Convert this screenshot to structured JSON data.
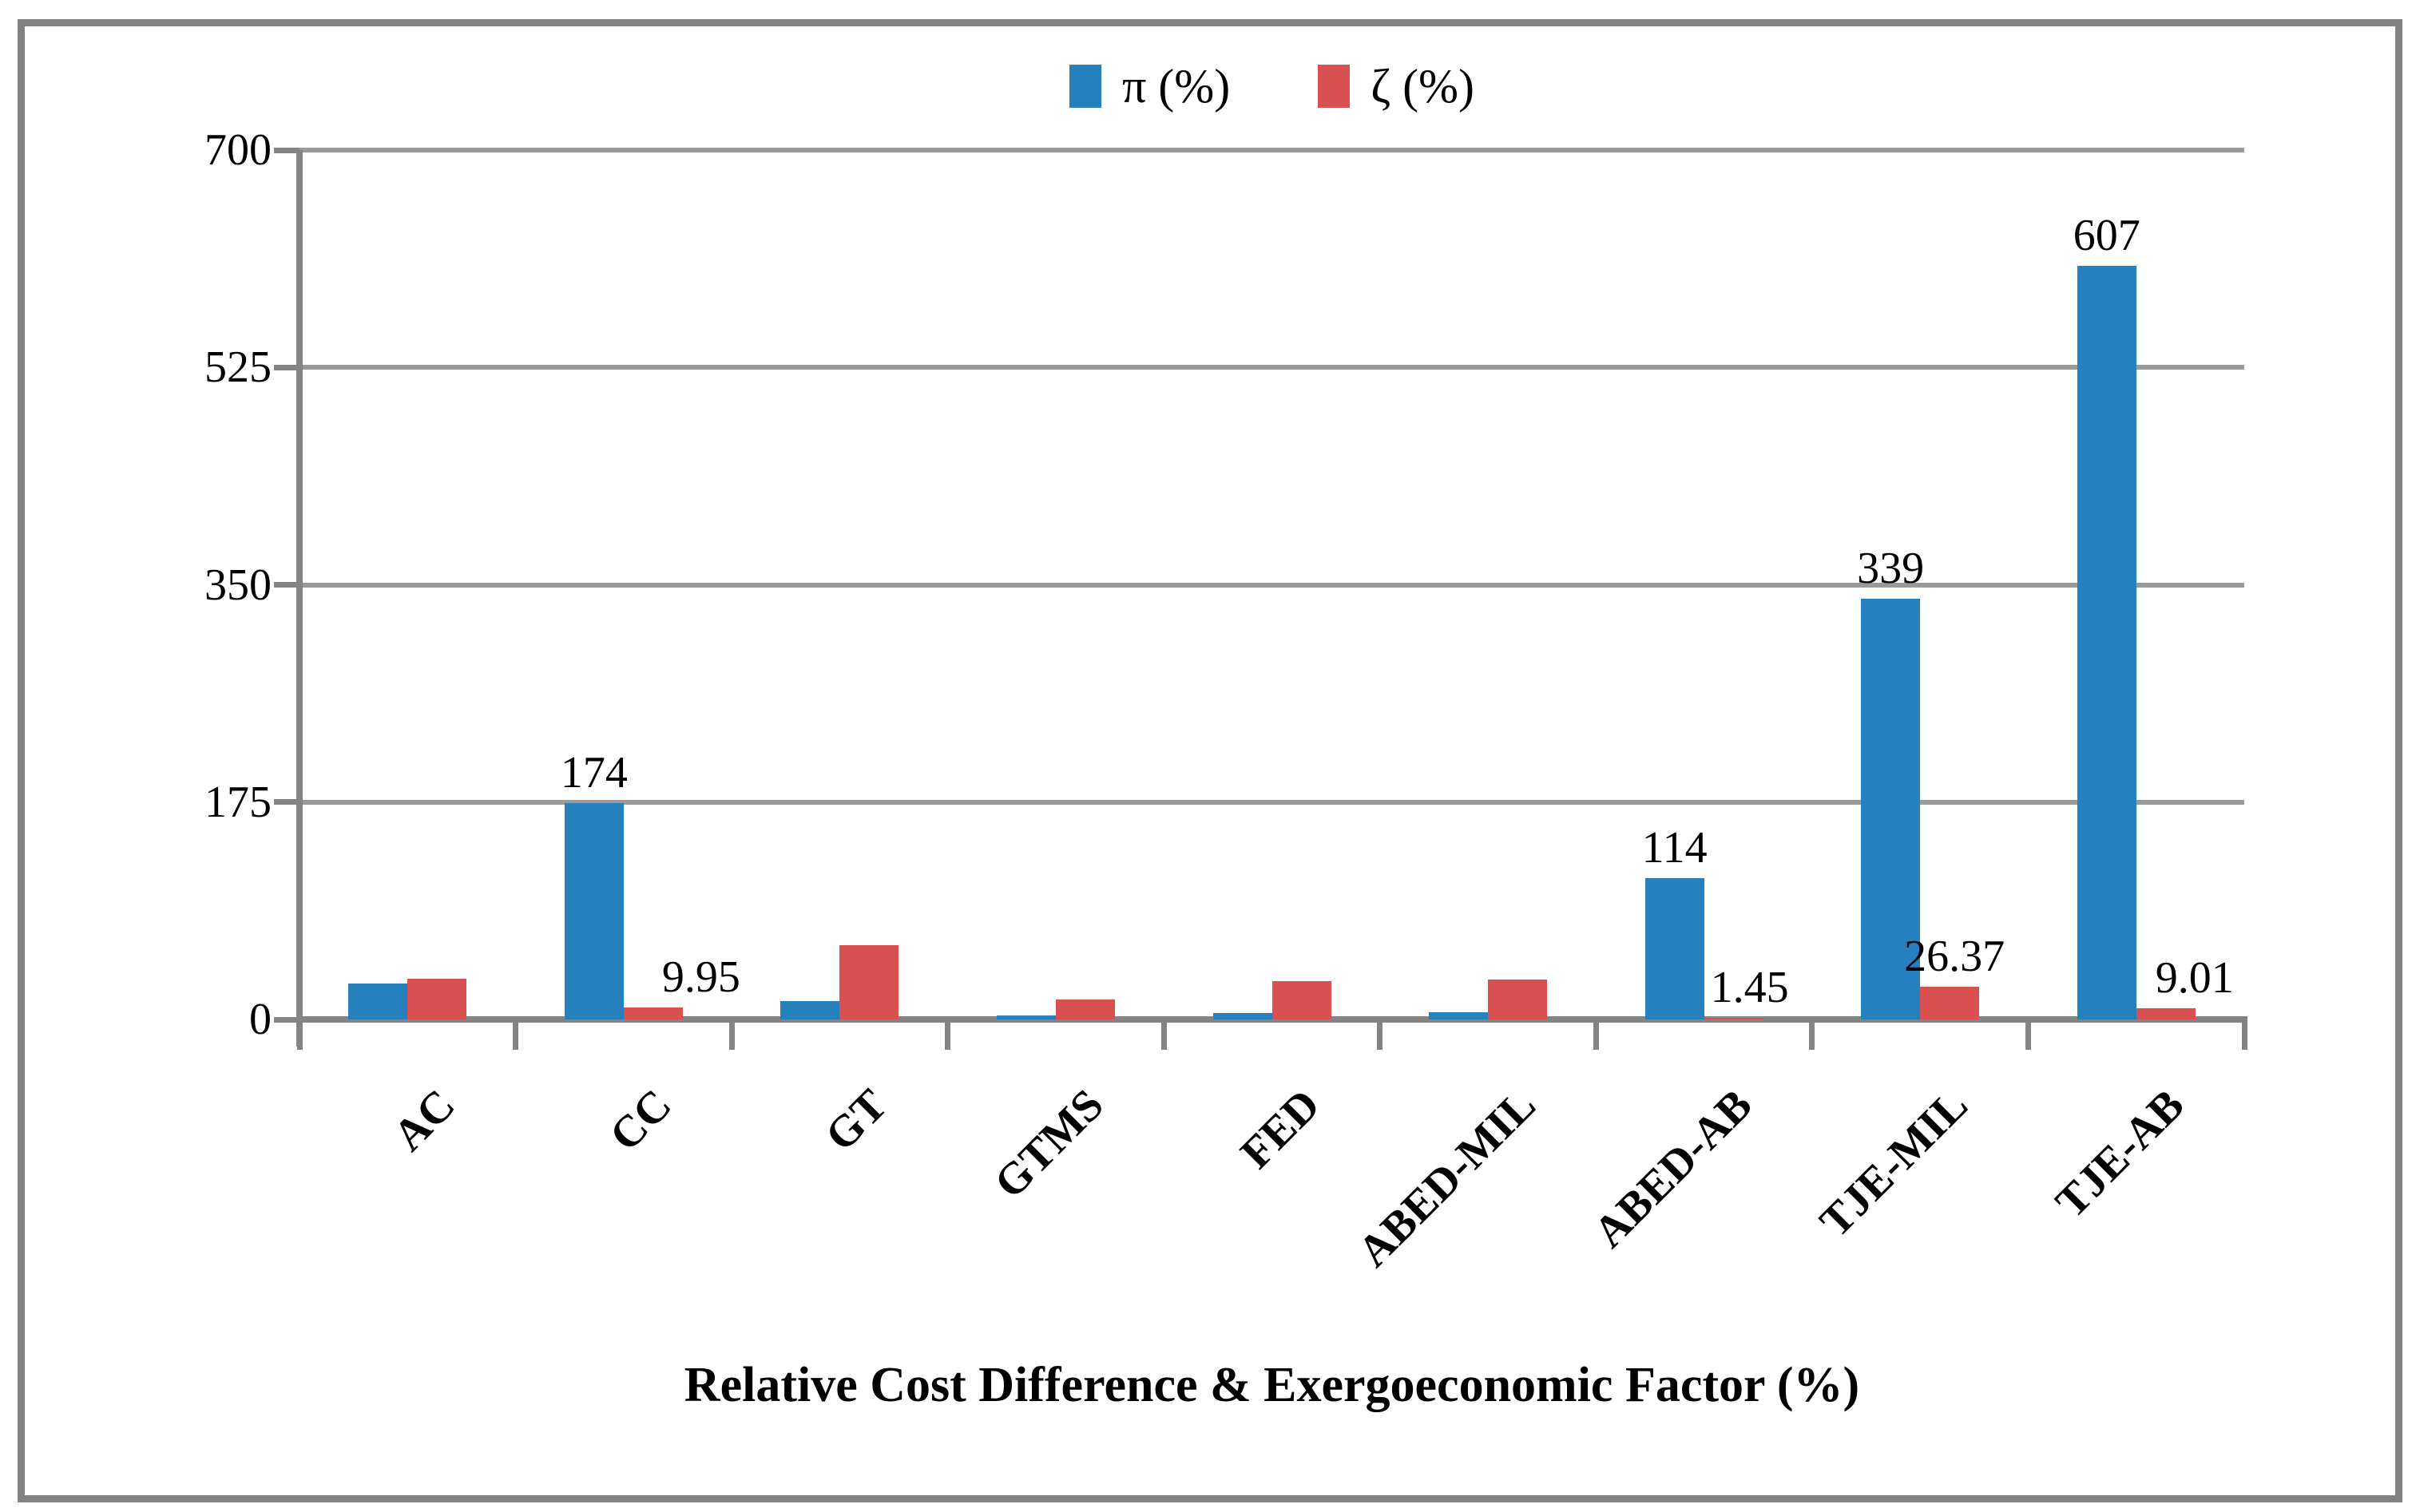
{
  "title": "Relative Cost Difference & Exergoeconomic Factor (%)",
  "colors": {
    "pi_series": "#2680BE",
    "zeta_series": "#D95050",
    "gridline": "#9a9a9a",
    "axis": "#848484",
    "frame_border": "#818181"
  },
  "legend": {
    "items": [
      {
        "label": "π (%)",
        "color": "#2680BE",
        "swatch": "blue-square-icon"
      },
      {
        "label": "ζ (%)",
        "color": "#D95050",
        "swatch": "red-square-icon"
      }
    ]
  },
  "chart_data": {
    "type": "bar",
    "title": "Relative Cost Difference & Exergoeconomic Factor (%)",
    "xlabel": "Relative Cost Difference & Exergoeconomic Factor (%)",
    "ylabel": "",
    "ylim": [
      0,
      700
    ],
    "y_ticks": [
      "0",
      "175",
      "350",
      "525",
      "700"
    ],
    "y_tick_values": [
      0,
      175,
      350,
      525,
      700
    ],
    "grid": "horizontal",
    "legend_position": "top-center",
    "categories": [
      "AC",
      "CC",
      "GT",
      "GTMS",
      "FED",
      "ABED-MIL",
      "ABED-AB",
      "TJE-MIL",
      "TJE-AB"
    ],
    "series": [
      {
        "name": "π (%)",
        "color": "#2680BE",
        "values": [
          29,
          174,
          15,
          3,
          5,
          6,
          114,
          339,
          607
        ],
        "data_labels": [
          "",
          "174",
          "",
          "",
          "",
          "",
          "114",
          "339",
          "607"
        ],
        "label_dx": [
          0,
          0,
          0,
          0,
          0,
          0,
          0,
          0,
          0
        ]
      },
      {
        "name": "ζ (%)",
        "color": "#D95050",
        "values": [
          33,
          9.95,
          60,
          16,
          31,
          32,
          1.45,
          26.37,
          9.01
        ],
        "data_labels": [
          "",
          "9.95",
          "",
          "",
          "",
          "",
          "1.45",
          "26.37",
          "9.01"
        ],
        "label_dx": [
          0,
          60,
          0,
          0,
          0,
          0,
          20,
          6,
          36
        ]
      }
    ]
  }
}
